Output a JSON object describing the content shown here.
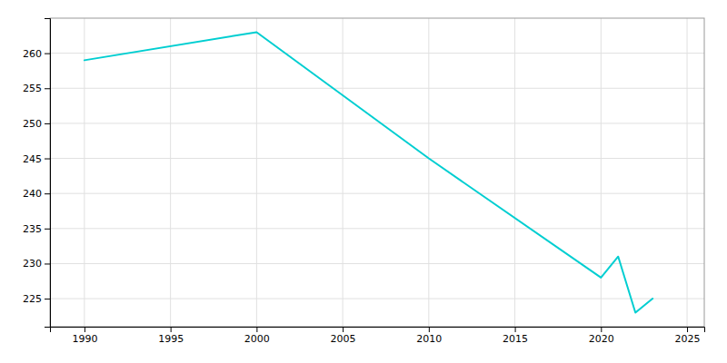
{
  "chart_data": {
    "type": "line",
    "x": [
      1990,
      2000,
      2010,
      2020,
      2021,
      2022,
      2023
    ],
    "values": [
      259,
      263,
      245,
      228,
      231,
      223,
      225
    ],
    "color": "#00CED1",
    "xlim": [
      1988,
      2026
    ],
    "ylim": [
      221,
      265
    ],
    "xticks": [
      1990,
      1995,
      2000,
      2005,
      2010,
      2015,
      2020,
      2025
    ],
    "yticks": [
      225,
      230,
      235,
      240,
      245,
      250,
      255,
      260
    ],
    "grid": true
  }
}
